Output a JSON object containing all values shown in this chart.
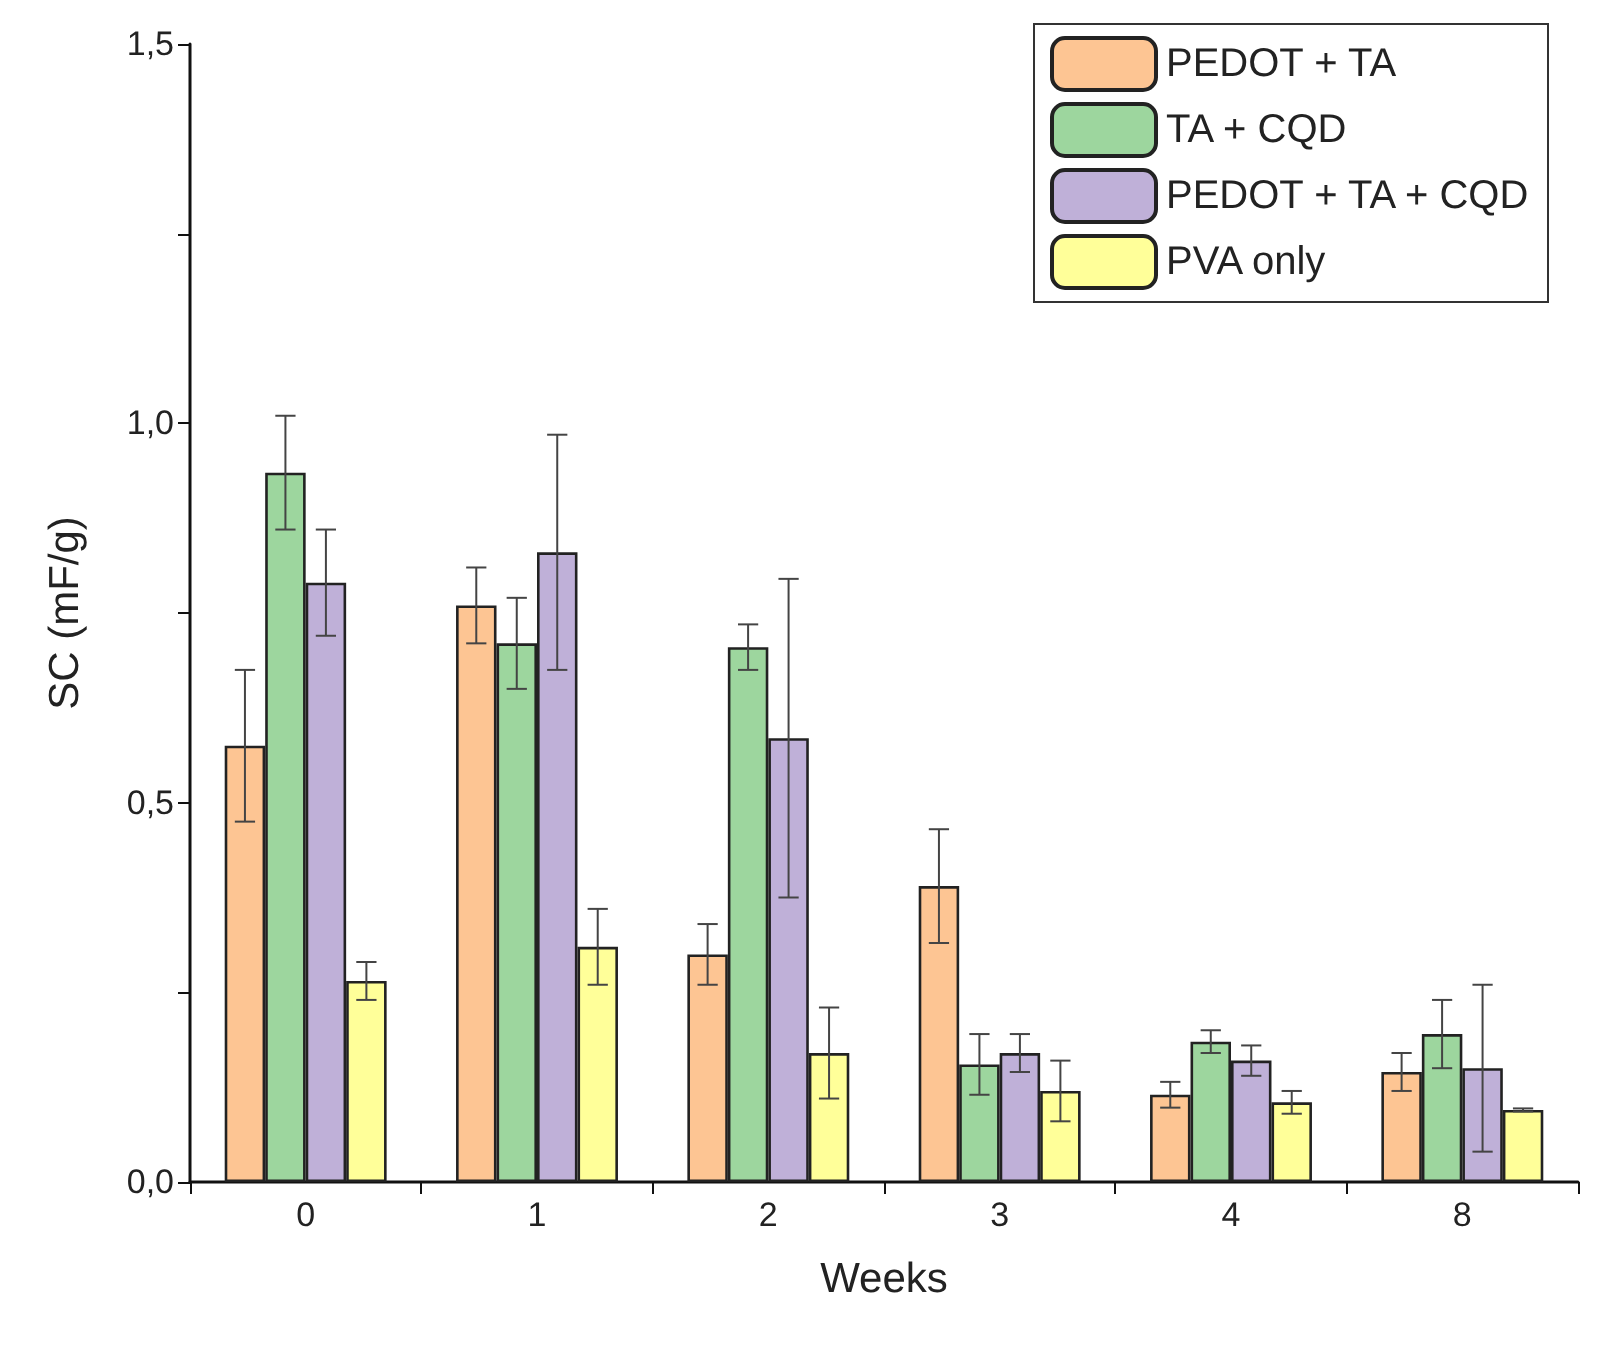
{
  "chart_data": {
    "type": "bar",
    "xlabel": "Weeks",
    "ylabel": "SC (mF/g)",
    "categories": [
      "0",
      "1",
      "2",
      "3",
      "4",
      "8"
    ],
    "series": [
      {
        "name": "PEDOT + TA",
        "color": "#fdc593",
        "values": [
          0.575,
          0.76,
          0.3,
          0.39,
          0.115,
          0.145
        ],
        "errors": [
          0.1,
          0.05,
          0.04,
          0.075,
          0.017,
          0.025
        ]
      },
      {
        "name": "TA + CQD",
        "color": "#9dd69e",
        "values": [
          0.935,
          0.71,
          0.705,
          0.155,
          0.185,
          0.195
        ],
        "errors": [
          0.075,
          0.06,
          0.03,
          0.04,
          0.015,
          0.045
        ]
      },
      {
        "name": "PEDOT + TA + CQD",
        "color": "#bfb0d8",
        "values": [
          0.79,
          0.83,
          0.585,
          0.17,
          0.16,
          0.15
        ],
        "errors": [
          0.07,
          0.155,
          0.21,
          0.025,
          0.02,
          0.11
        ]
      },
      {
        "name": "PVA only",
        "color": "#ffff99",
        "values": [
          0.265,
          0.31,
          0.17,
          0.12,
          0.105,
          0.095
        ],
        "errors": [
          0.025,
          0.05,
          0.06,
          0.04,
          0.015,
          0.002
        ]
      }
    ],
    "ylim": [
      0,
      1.5
    ],
    "yticks": [
      {
        "value": 0,
        "label": "0,0"
      },
      {
        "value": 0.25,
        "label": null
      },
      {
        "value": 0.5,
        "label": "0,5"
      },
      {
        "value": 0.75,
        "label": null
      },
      {
        "value": 1,
        "label": "1,0"
      },
      {
        "value": 1.25,
        "label": null
      },
      {
        "value": 1.5,
        "label": "1,5"
      }
    ],
    "grid": false,
    "legend": "top right"
  }
}
